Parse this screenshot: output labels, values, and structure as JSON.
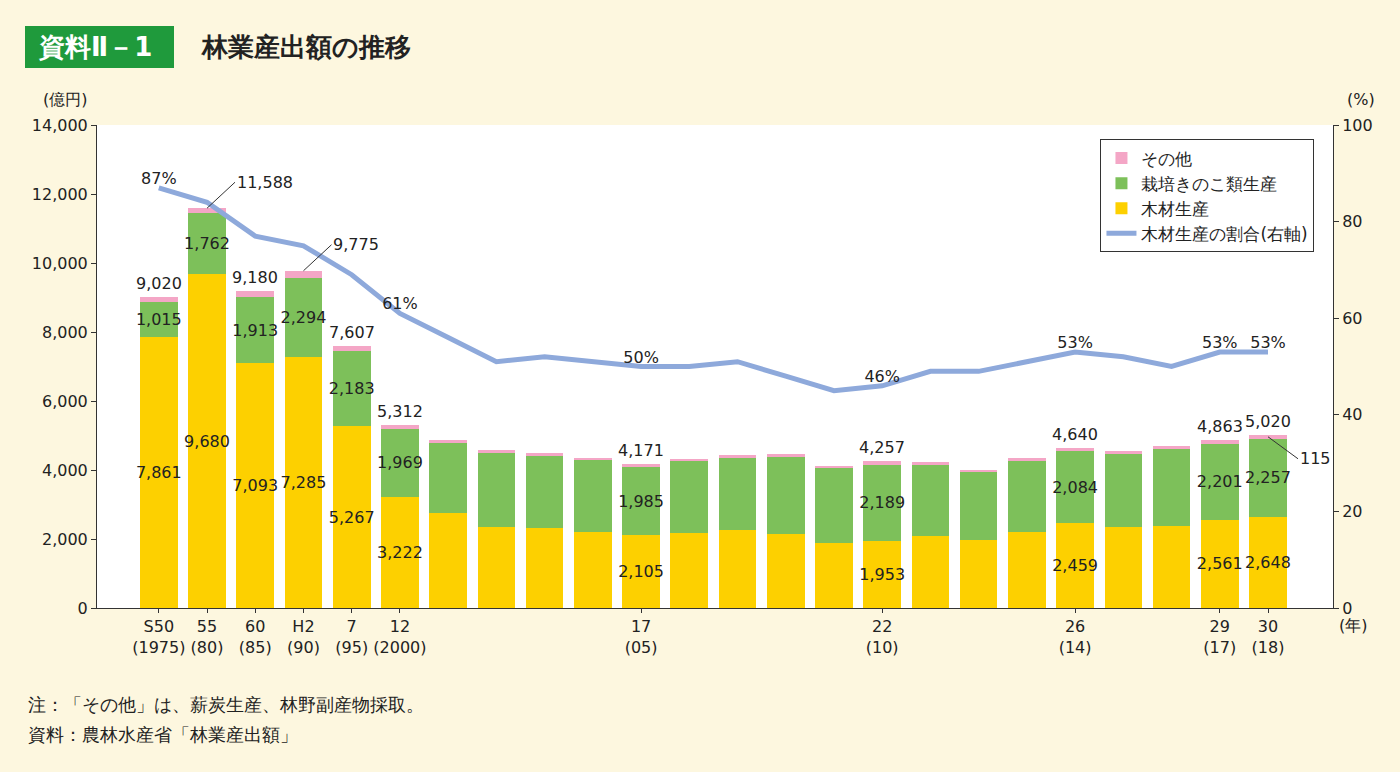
{
  "chart_data": {
    "type": "bar",
    "stacked": true,
    "figure_number": "資料Ⅱ－1",
    "title": "林業産出額の推移",
    "ylabel": "(億円)",
    "y2label": "(%)",
    "xlabel": "(年)",
    "notes": [
      "注：「その他」は、薪炭生産、林野副産物採取。",
      "資料：農林水産省「林業産出額」"
    ],
    "categories": [
      "S50\n(1975)",
      "55\n(80)",
      "60\n(85)",
      "H2\n(90)",
      "7\n(95)",
      "12\n(2000)",
      null,
      null,
      null,
      null,
      "17\n(05)",
      null,
      null,
      null,
      null,
      "22\n(10)",
      null,
      null,
      null,
      "26\n(14)",
      null,
      null,
      "29\n(17)",
      "30\n(18)"
    ],
    "ylim": [
      0,
      14000
    ],
    "yticks": [
      0,
      {
        "value": 2000,
        "label": "2,000"
      },
      {
        "value": 4000,
        "label": "4,000"
      },
      {
        "value": 6000,
        "label": "6,000"
      },
      {
        "value": 8000,
        "label": "8,000"
      },
      {
        "value": 10000,
        "label": "10,000"
      },
      {
        "value": 12000,
        "label": "12,000"
      },
      {
        "value": 14000,
        "label": "14,000"
      }
    ],
    "y2lim": [
      0,
      100
    ],
    "y2ticks": [
      0,
      20,
      40,
      60,
      80,
      100
    ],
    "grid": false,
    "legend": "upper right",
    "data_labels": true,
    "series": [
      {
        "name": "木材生産",
        "type": "bar",
        "color": "#fdd000",
        "values": [
          7861,
          9680,
          7093,
          7285,
          5267,
          3222,
          2750,
          2350,
          2330,
          2200,
          2105,
          2170,
          2270,
          2140,
          1880,
          1953,
          2080,
          1970,
          2200,
          2459,
          2350,
          2370,
          2561,
          2648
        ],
        "value_labels": [
          "7,861",
          "9,680",
          "7,093",
          "7,285",
          "5,267",
          "3,222",
          null,
          null,
          null,
          null,
          "2,105",
          null,
          null,
          null,
          null,
          "1,953",
          null,
          null,
          null,
          "2,459",
          null,
          null,
          "2,561",
          "2,648"
        ]
      },
      {
        "name": "栽培きのこ類生産",
        "type": "bar",
        "color": "#7dc05a",
        "values": [
          1015,
          1762,
          1913,
          2294,
          2183,
          1969,
          2030,
          2140,
          2090,
          2080,
          1985,
          2080,
          2080,
          2250,
          2170,
          2189,
          2070,
          1960,
          2050,
          2084,
          2110,
          2240,
          2201,
          2257
        ],
        "value_labels": [
          "1,015",
          "1,762",
          "1,913",
          "2,294",
          "2,183",
          "1,969",
          null,
          null,
          null,
          null,
          "1,985",
          null,
          null,
          null,
          null,
          "2,189",
          null,
          null,
          null,
          "2,084",
          null,
          null,
          "2,201",
          "2,257"
        ]
      },
      {
        "name": "その他",
        "type": "bar",
        "color": "#f4a6c6",
        "values": [
          144,
          146,
          174,
          196,
          157,
          121,
          90,
          80,
          80,
          80,
          81,
          80,
          80,
          80,
          80,
          115,
          90,
          80,
          90,
          97,
          90,
          100,
          101,
          115
        ],
        "value_labels": [
          null,
          null,
          null,
          null,
          null,
          null,
          null,
          null,
          null,
          null,
          null,
          null,
          null,
          null,
          null,
          null,
          null,
          null,
          null,
          null,
          null,
          null,
          null,
          "115"
        ]
      },
      {
        "name": "木材生産の割合(右軸)",
        "type": "line",
        "axis": "y2",
        "color": "#8ea9db",
        "values": [
          87,
          84,
          77,
          75,
          69,
          61,
          56,
          51,
          52,
          51,
          50,
          50,
          51,
          48,
          45,
          46,
          49,
          49,
          51,
          53,
          52,
          50,
          53,
          53
        ],
        "value_labels": [
          "87%",
          null,
          null,
          null,
          null,
          "61%",
          null,
          null,
          null,
          null,
          "50%",
          null,
          null,
          null,
          null,
          "46%",
          null,
          null,
          null,
          "53%",
          null,
          null,
          "53%",
          "53%"
        ]
      }
    ],
    "totals": {
      "values": [
        9020,
        11588,
        9180,
        9775,
        7607,
        5312,
        null,
        null,
        null,
        null,
        4171,
        null,
        null,
        null,
        null,
        4257,
        null,
        null,
        null,
        4640,
        null,
        null,
        4863,
        5020
      ],
      "value_labels": [
        "9,020",
        "11,588",
        "9,180",
        "9,775",
        "7,607",
        "5,312",
        null,
        null,
        null,
        null,
        "4,171",
        null,
        null,
        null,
        null,
        "4,257",
        null,
        null,
        null,
        "4,640",
        null,
        null,
        "4,863",
        "5,020"
      ]
    }
  }
}
